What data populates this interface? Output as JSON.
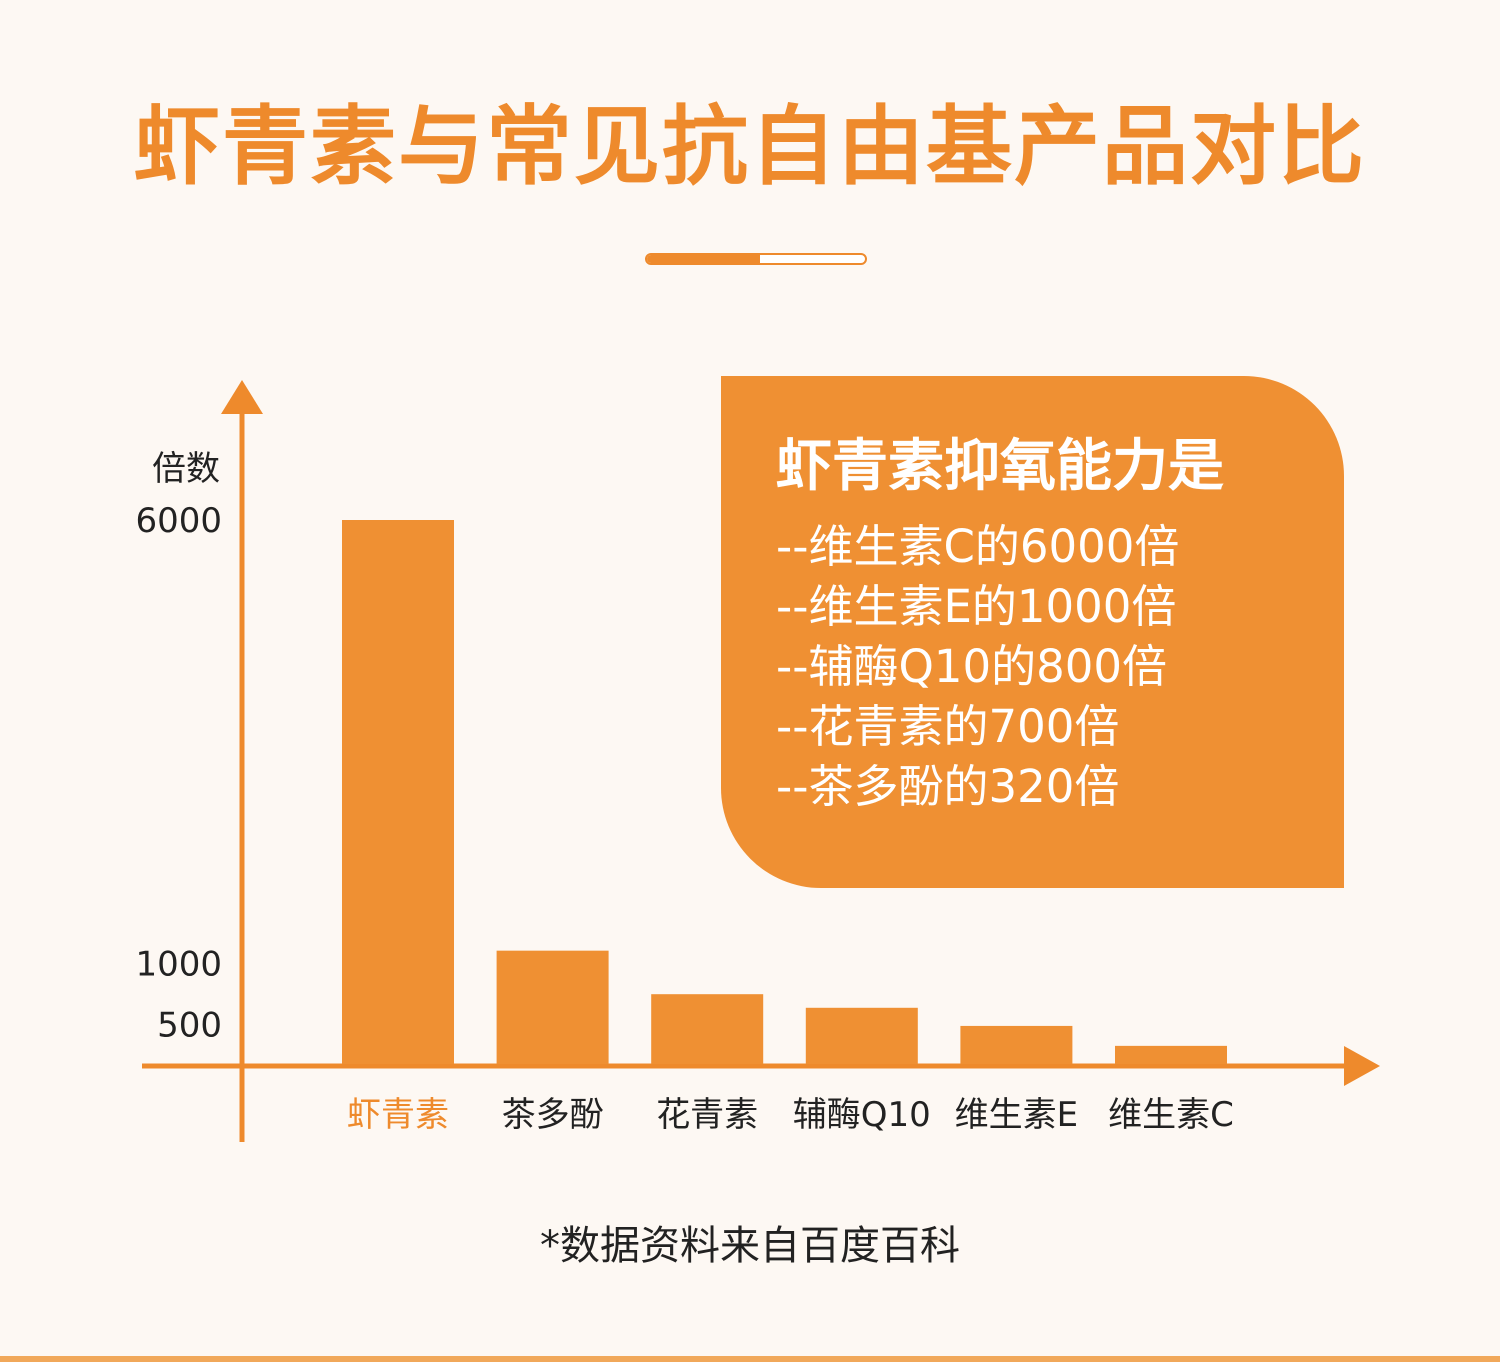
{
  "title": "虾青素与常见抗自由基产品对比",
  "divider": {
    "progress": 0.52,
    "accent": "#ee8a2c"
  },
  "chart_data": {
    "type": "bar",
    "title": "",
    "xlabel": "",
    "ylabel": "倍数",
    "ylim": [
      0,
      6500
    ],
    "yticks": [
      {
        "value": 6000,
        "label": "6000"
      },
      {
        "value": 1000,
        "label": "1000"
      },
      {
        "value": 500,
        "label": "500"
      }
    ],
    "categories": [
      "虾青素",
      "茶多酚",
      "花青素",
      "辅酶Q10",
      "维生素E",
      "维生素C"
    ],
    "values": [
      6000,
      1250,
      770,
      620,
      420,
      200
    ],
    "highlight_index": 0,
    "bar_color": "#ef9033",
    "highlight_label_color": "#ee8a2c",
    "label_color": "#222222",
    "axis_color": "#ee8a2c"
  },
  "infobox": {
    "heading": "虾青素抑氧能力是",
    "lines": [
      "--维生素C的6000倍",
      "--维生素E的1000倍",
      "--辅酶Q10的800倍",
      "--花青素的700倍",
      "--茶多酚的320倍"
    ],
    "background": "#ef9033"
  },
  "footnote": "*数据资料来自百度百科"
}
